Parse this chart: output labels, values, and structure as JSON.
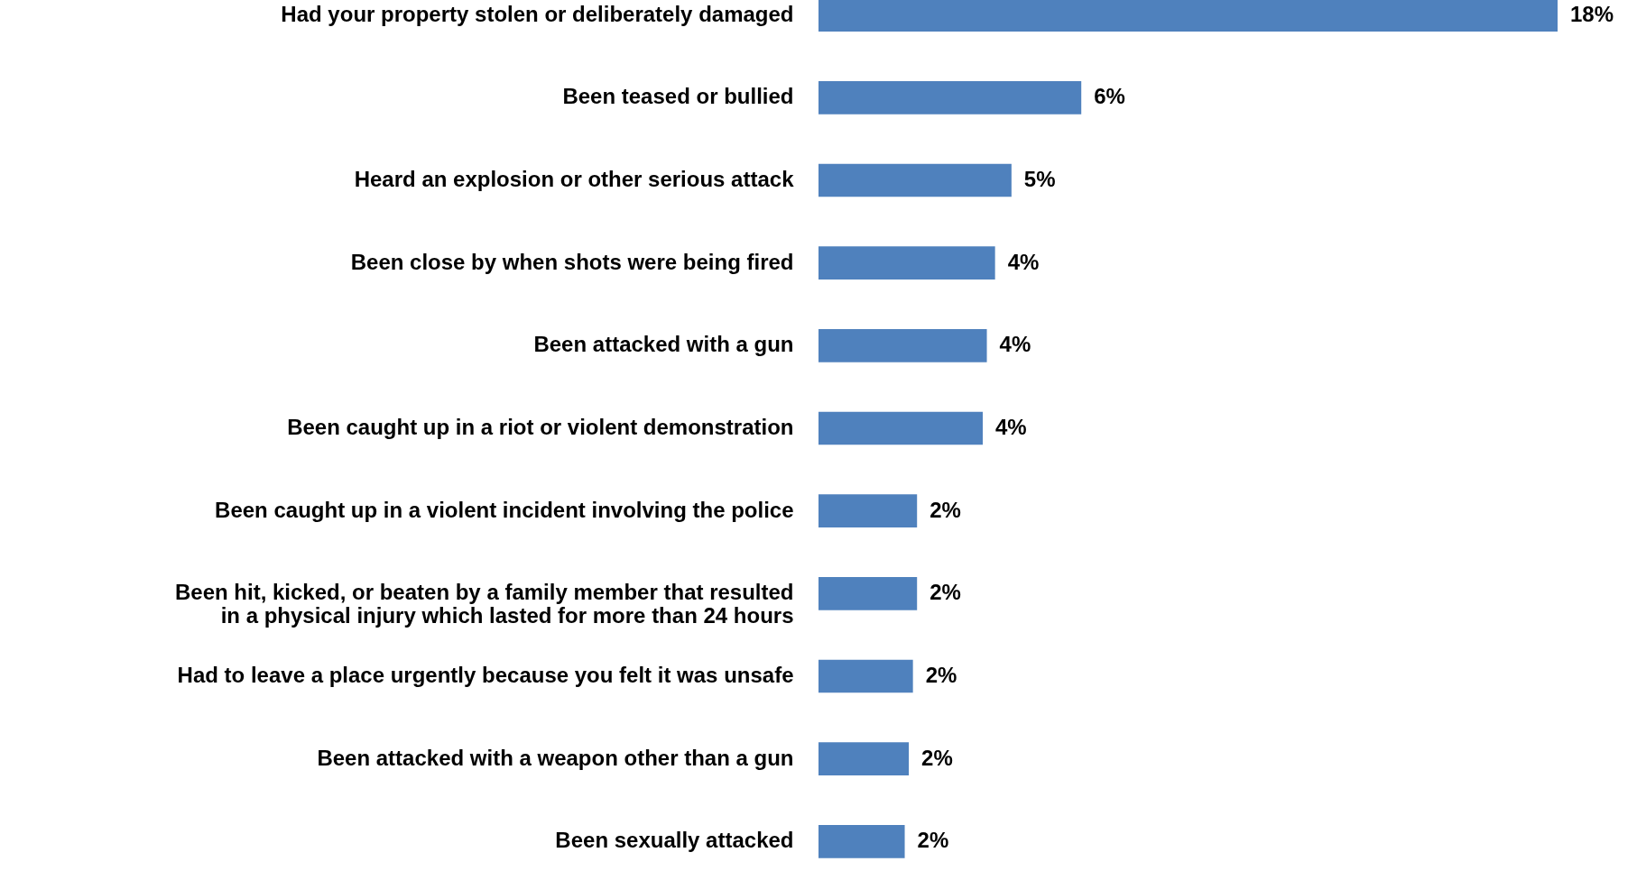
{
  "chart_data": {
    "type": "bar",
    "orientation": "horizontal",
    "categories": [
      "Had your property stolen or deliberately damaged",
      "Been teased or bullied",
      "Heard an explosion or other serious attack",
      "Been close by when shots were being fired",
      "Been attacked with a gun",
      "Been caught up in a riot or violent demonstration",
      "Been caught up in a violent incident involving the police",
      "Been hit, kicked, or beaten by a family member that resulted in a physical injury which lasted for more than 24 hours",
      "Had to leave a place urgently because you felt it was unsafe",
      "Been attacked with a weapon other than a gun",
      "Been sexually attacked"
    ],
    "values": [
      18,
      6.4,
      4.7,
      4.3,
      4.1,
      4,
      2.4,
      2.4,
      2.3,
      2.2,
      2.1
    ],
    "value_labels": [
      "18%",
      "6%",
      "5%",
      "4%",
      "4%",
      "4%",
      "2%",
      "2%",
      "2%",
      "2%",
      "2%"
    ],
    "color": "#4f81bd"
  }
}
